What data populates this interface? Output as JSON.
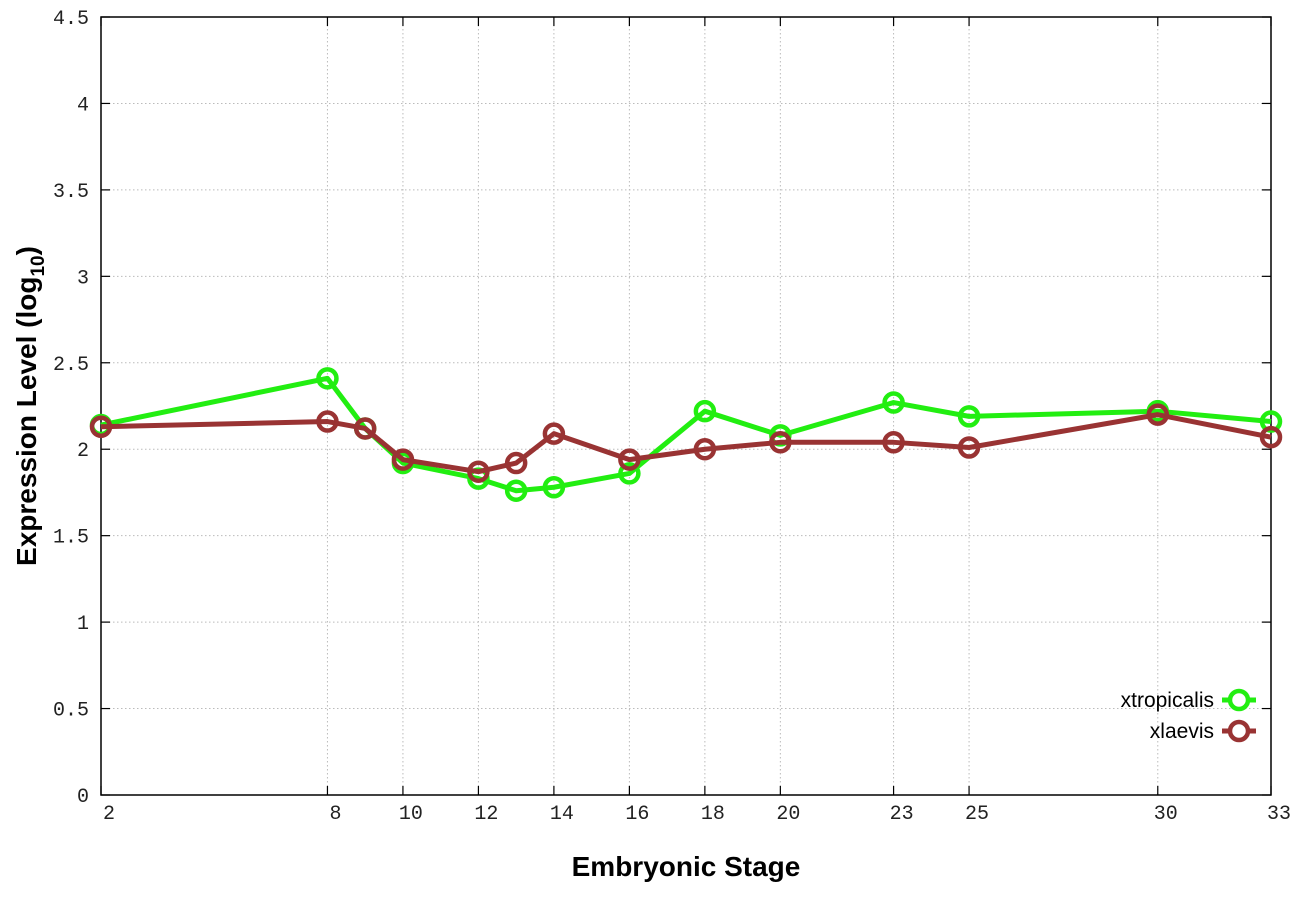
{
  "chart_data": {
    "type": "line",
    "xlabel": "Embryonic Stage",
    "ylabel": "Expression Level (log",
    "ylabel_subscript": "10",
    "ylabel_suffix": ")",
    "x": [
      2,
      8,
      9,
      10,
      12,
      13,
      14,
      16,
      18,
      20,
      23,
      25,
      30,
      33
    ],
    "x_ticks": [
      2,
      8,
      10,
      12,
      14,
      16,
      18,
      20,
      23,
      25,
      30,
      33
    ],
    "xlim": [
      2,
      33
    ],
    "ylim": [
      0,
      4.5
    ],
    "y_ticks": [
      "0",
      "0.5",
      "1",
      "1.5",
      "2",
      "2.5",
      "3",
      "3.5",
      "4",
      "4.5"
    ],
    "grid": true,
    "legend_position": "bottom-right",
    "series": [
      {
        "name": "xtropicalis",
        "color": "#22ee11",
        "values": [
          2.14,
          2.41,
          2.12,
          1.92,
          1.83,
          1.76,
          1.78,
          1.86,
          2.22,
          2.08,
          2.27,
          2.19,
          2.22,
          2.16
        ]
      },
      {
        "name": "xlaevis",
        "color": "#993333",
        "values": [
          2.13,
          2.16,
          2.12,
          1.94,
          1.87,
          1.92,
          2.09,
          1.94,
          2.0,
          2.04,
          2.04,
          2.01,
          2.2,
          2.07
        ]
      }
    ]
  }
}
